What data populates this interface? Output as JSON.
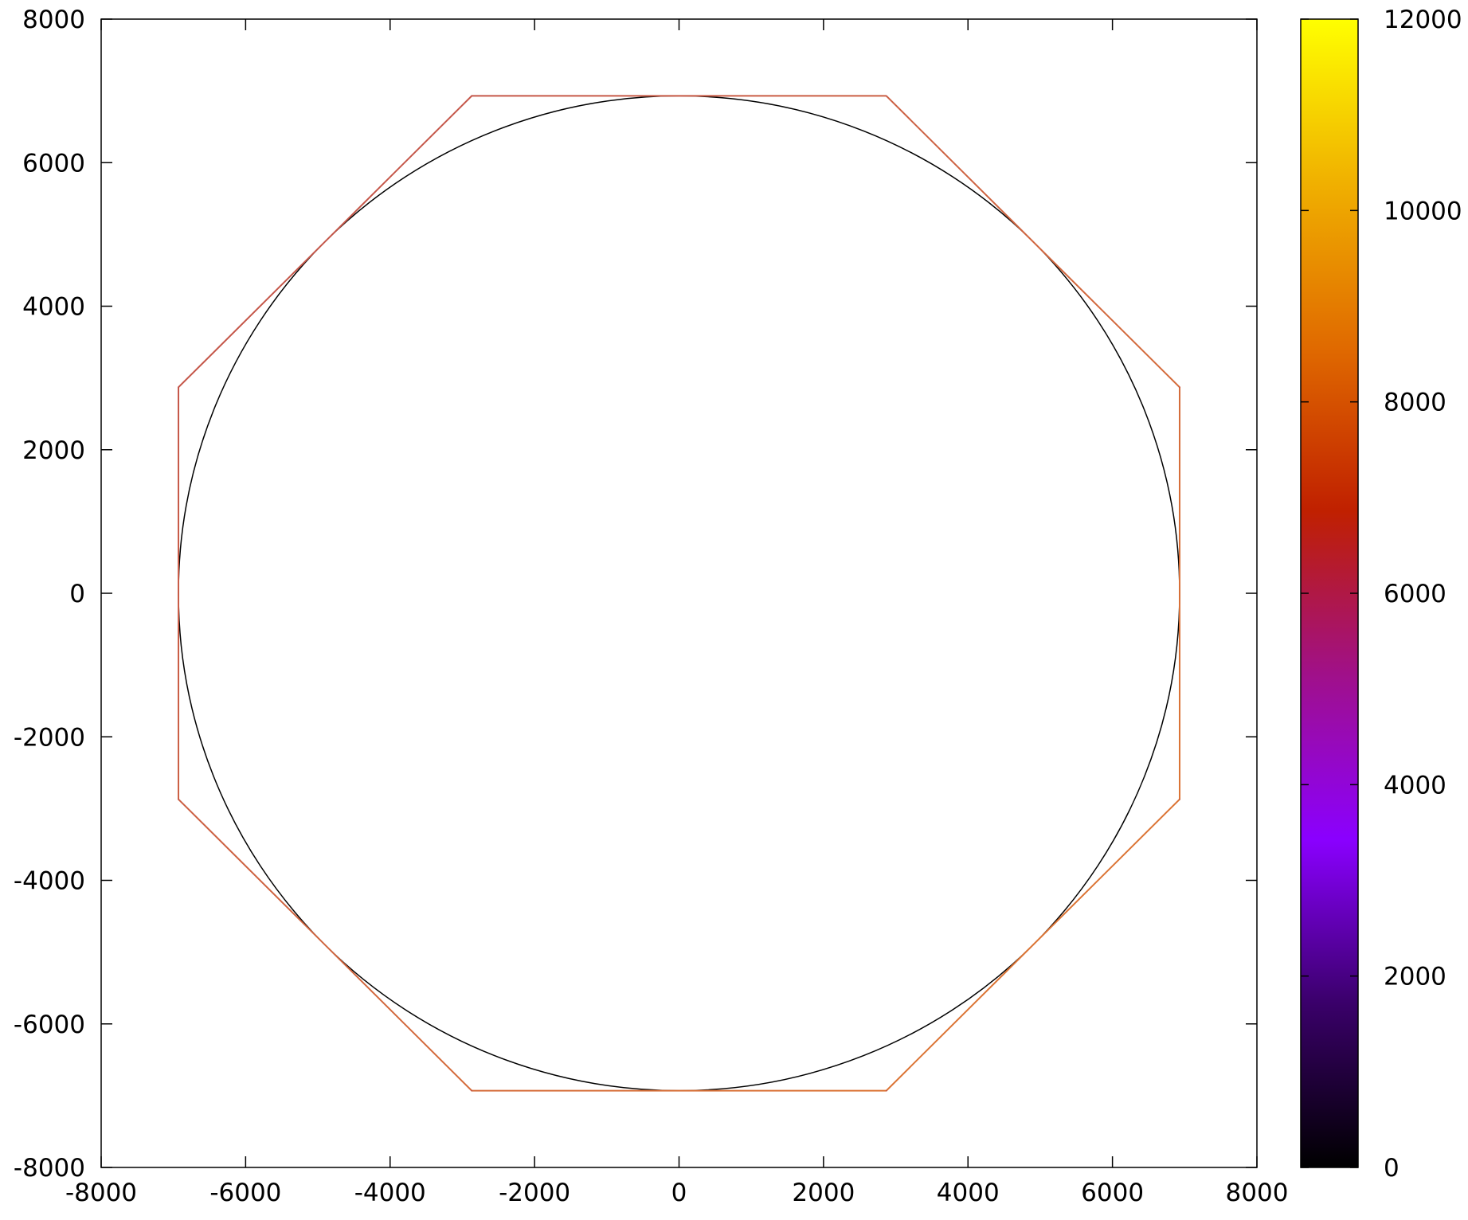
{
  "chart_data": {
    "type": "line",
    "title": "",
    "xlabel": "",
    "ylabel": "",
    "xlim": [
      -8000,
      8000
    ],
    "ylim": [
      -8000,
      8000
    ],
    "xticks": [
      -8000,
      -6000,
      -4000,
      -2000,
      0,
      2000,
      4000,
      6000,
      8000
    ],
    "yticks": [
      -8000,
      -6000,
      -4000,
      -2000,
      0,
      2000,
      4000,
      6000,
      8000
    ],
    "x_tick_labels": [
      "-8000",
      "-6000",
      "-4000",
      "-2000",
      "0",
      "2000",
      "4000",
      "6000",
      "8000"
    ],
    "y_tick_labels": [
      "-8000",
      "-6000",
      "-4000",
      "-2000",
      "0",
      "2000",
      "4000",
      "6000",
      "8000"
    ],
    "grid": false,
    "legend": "none",
    "series": [
      {
        "shape": "circle",
        "color": "#000000",
        "center": [
          0,
          0
        ],
        "radius": 6930
      },
      {
        "shape": "octagon",
        "color_start": "#c0504d",
        "color_end": "#e07a30",
        "x": [
          2870,
          6930,
          6930,
          2870,
          -2870,
          -6930,
          -6930,
          -2870,
          2870
        ],
        "y": [
          6930,
          2870,
          -2870,
          -6930,
          -6930,
          -2870,
          2870,
          6930,
          6930
        ]
      }
    ],
    "colorbar": {
      "range": [
        0,
        12000
      ],
      "ticks": [
        0,
        2000,
        4000,
        6000,
        8000,
        10000,
        12000
      ],
      "tick_labels": [
        "0",
        "2000",
        "4000",
        "6000",
        "8000",
        "10000",
        "12000"
      ],
      "palette": [
        "#000000",
        "#3a006a",
        "#8a00ff",
        "#a0108a",
        "#c02000",
        "#e06a00",
        "#f0b000",
        "#ffff00"
      ]
    }
  }
}
